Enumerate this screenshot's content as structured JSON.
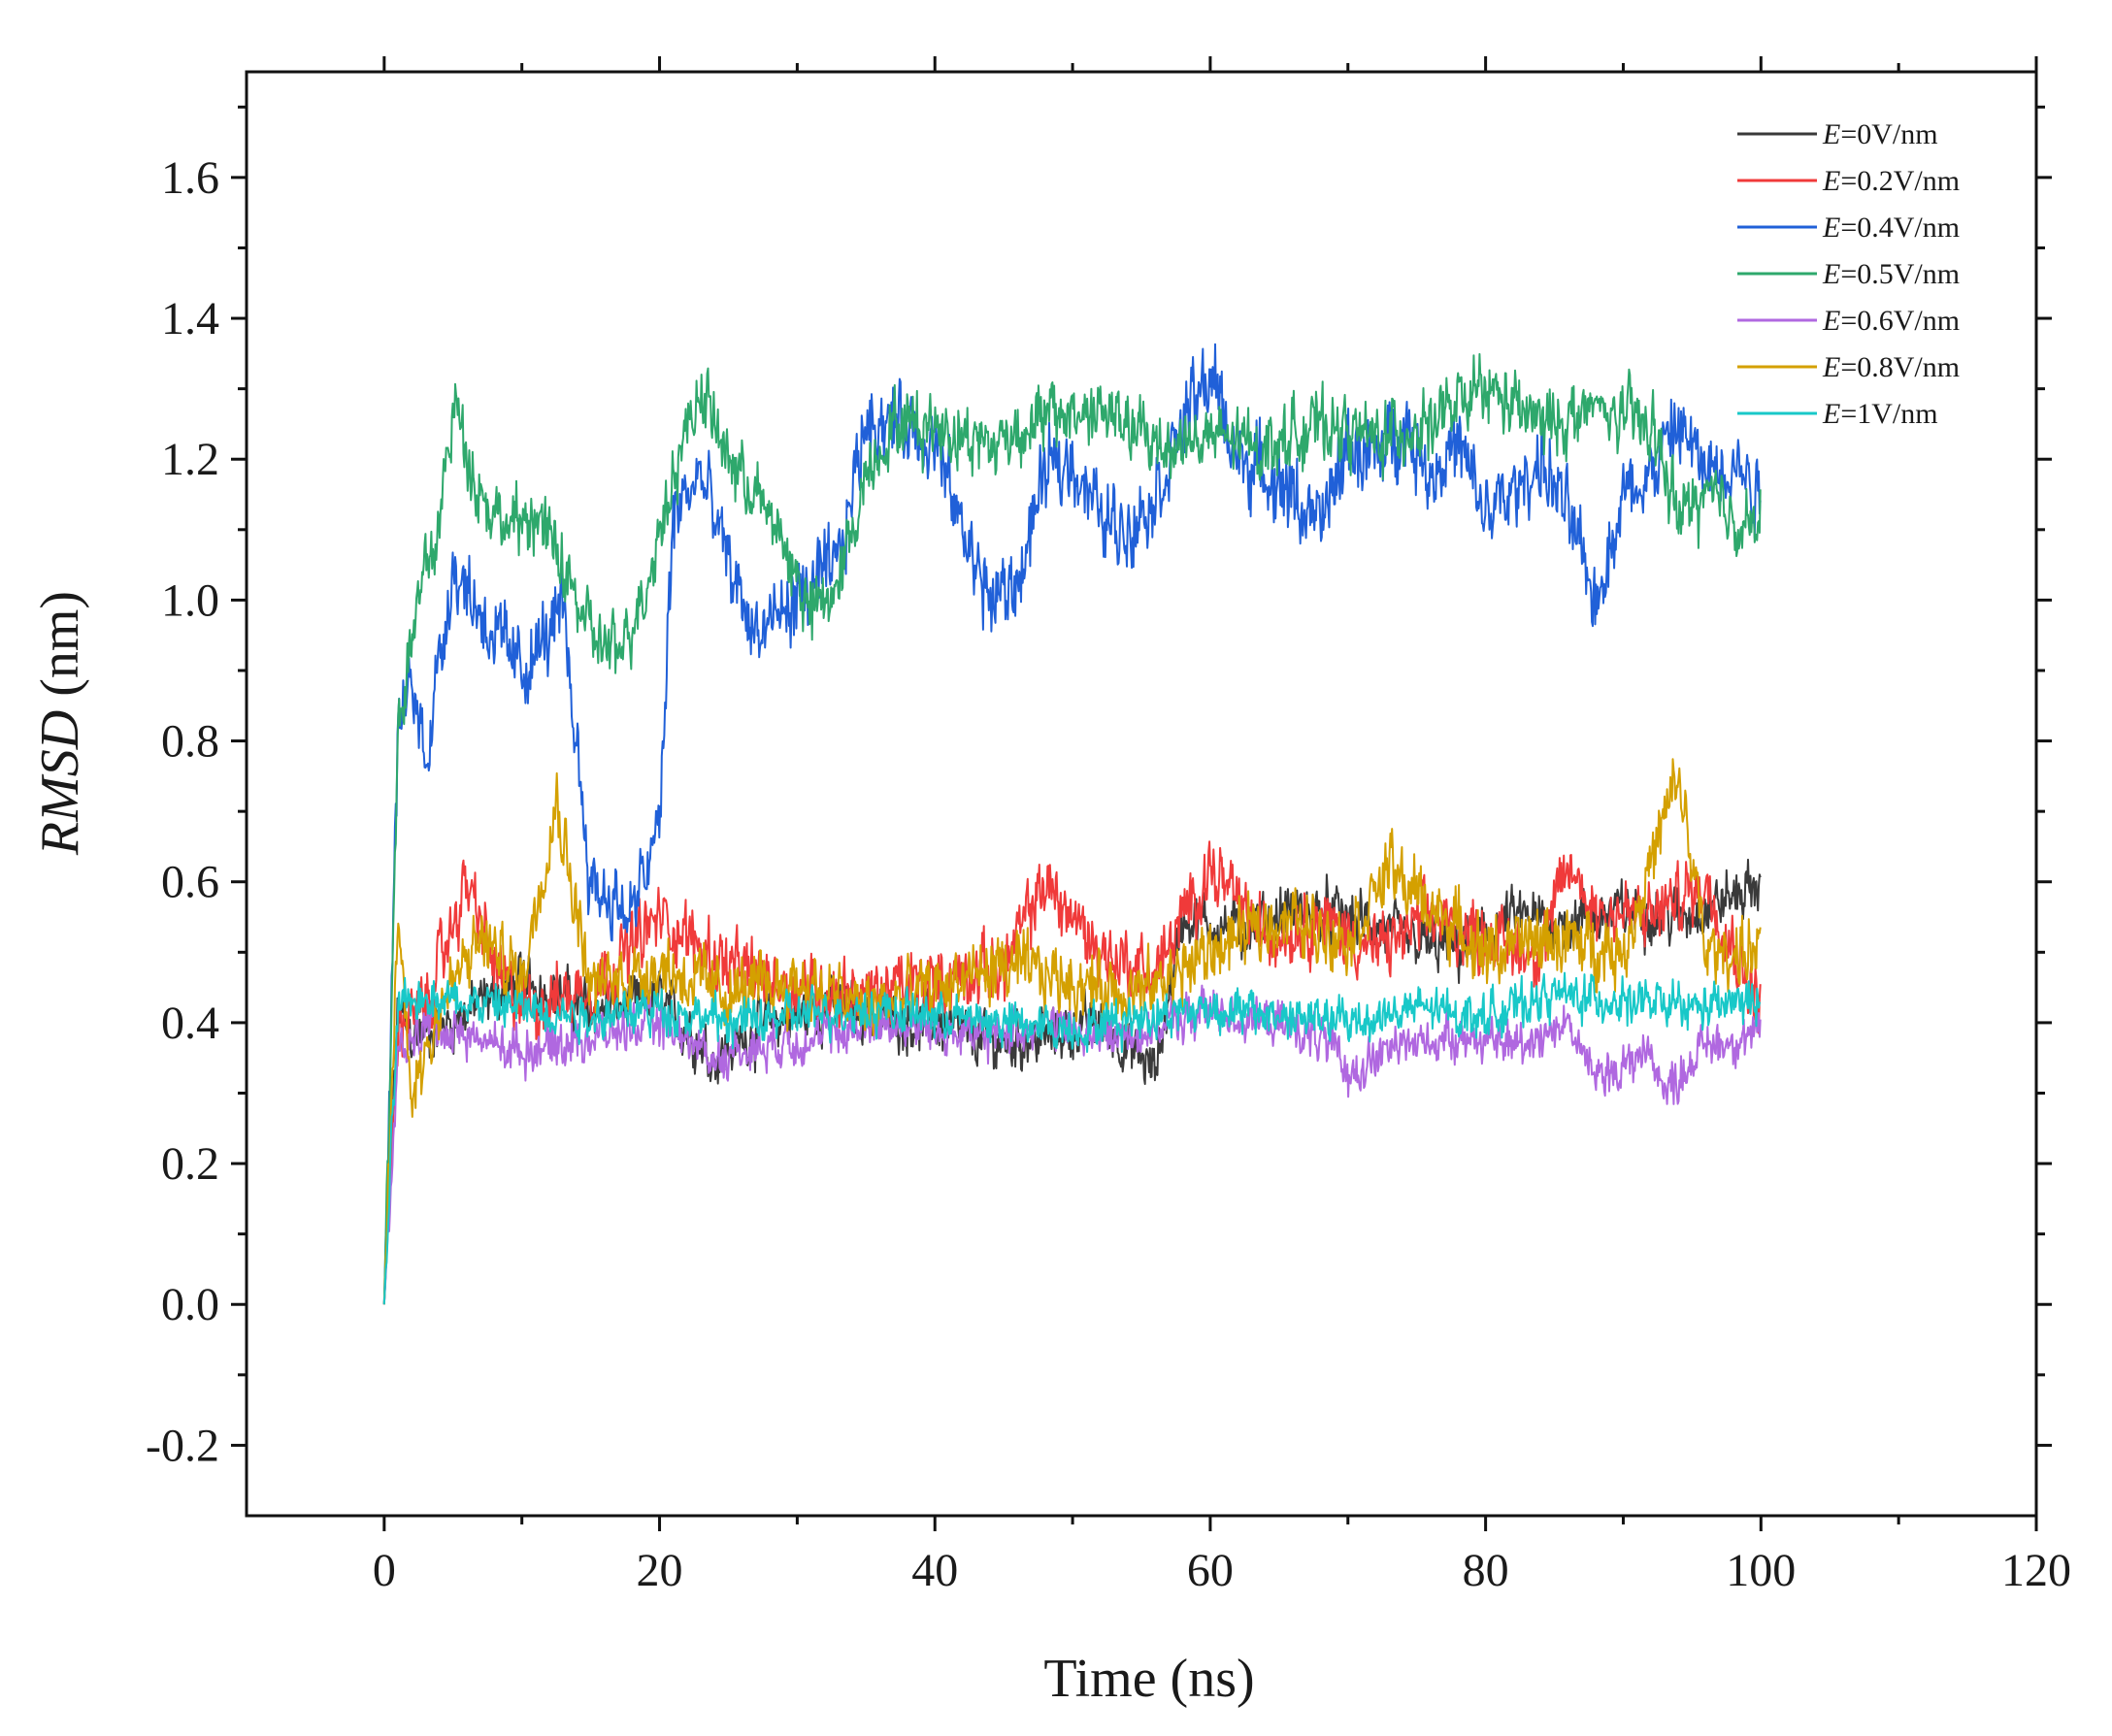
{
  "chart_data": {
    "type": "line",
    "title": "",
    "xlabel": "Time (ns)",
    "ylabel_italic": "RMSD",
    "ylabel_unit": " (nm)",
    "xlim": [
      -10,
      120
    ],
    "ylim": [
      -0.3,
      1.75
    ],
    "x_ticks": [
      0,
      20,
      40,
      60,
      80,
      100,
      120
    ],
    "y_ticks": [
      -0.2,
      0.0,
      0.2,
      0.4,
      0.6,
      0.8,
      1.0,
      1.2,
      1.4,
      1.6
    ],
    "x_tick_labels": [
      "0",
      "20",
      "40",
      "60",
      "80",
      "100",
      "120"
    ],
    "y_tick_labels": [
      "-0.2",
      "0.0",
      "0.2",
      "0.4",
      "0.6",
      "0.8",
      "1.0",
      "1.2",
      "1.4",
      "1.6"
    ],
    "grid": false,
    "legend_position": "top-right",
    "series": [
      {
        "name": "E=0V/nm",
        "var": "E",
        "rest": "=0V/nm",
        "color": "#3a3a3a",
        "x": [
          0,
          1,
          2,
          5,
          8,
          10,
          15,
          20,
          24,
          28,
          32,
          36,
          40,
          44,
          48,
          52,
          56,
          58,
          62,
          66,
          70,
          74,
          78,
          82,
          86,
          90,
          94,
          98,
          100
        ],
        "y": [
          0.0,
          0.42,
          0.38,
          0.4,
          0.44,
          0.46,
          0.42,
          0.43,
          0.35,
          0.4,
          0.42,
          0.41,
          0.4,
          0.37,
          0.38,
          0.4,
          0.33,
          0.55,
          0.53,
          0.56,
          0.55,
          0.52,
          0.5,
          0.55,
          0.54,
          0.56,
          0.55,
          0.58,
          0.6
        ]
      },
      {
        "name": "E=0.2V/nm",
        "var": "E",
        "rest": "=0.2V/nm",
        "color": "#f03a3a",
        "x": [
          0,
          1,
          3,
          6,
          8,
          10,
          15,
          20,
          25,
          30,
          35,
          40,
          45,
          48,
          52,
          56,
          60,
          64,
          68,
          72,
          76,
          80,
          84,
          86,
          88,
          92,
          96,
          100
        ],
        "y": [
          0.0,
          0.4,
          0.42,
          0.6,
          0.48,
          0.42,
          0.45,
          0.55,
          0.48,
          0.45,
          0.44,
          0.46,
          0.48,
          0.6,
          0.5,
          0.47,
          0.62,
          0.52,
          0.55,
          0.5,
          0.55,
          0.52,
          0.5,
          0.62,
          0.56,
          0.55,
          0.6,
          0.42
        ]
      },
      {
        "name": "E=0.4V/nm",
        "var": "E",
        "rest": "=0.4V/nm",
        "color": "#2060d8",
        "x": [
          0,
          1,
          2,
          3,
          5,
          8,
          10,
          13,
          15,
          18,
          20,
          21,
          23,
          25,
          27,
          30,
          33,
          35,
          38,
          40,
          42,
          44,
          46,
          48,
          50,
          52,
          54,
          56,
          58,
          60,
          62,
          64,
          66,
          68,
          70,
          72,
          74,
          76,
          78,
          80,
          82,
          84,
          86,
          88,
          90,
          92,
          94,
          96,
          98,
          100
        ],
        "y": [
          0.0,
          0.82,
          0.88,
          0.78,
          1.05,
          0.95,
          0.9,
          0.98,
          0.6,
          0.55,
          0.68,
          1.12,
          1.18,
          1.05,
          0.95,
          1.0,
          1.05,
          1.26,
          1.25,
          1.22,
          1.1,
          1.0,
          1.02,
          1.18,
          1.2,
          1.12,
          1.1,
          1.15,
          1.25,
          1.32,
          1.2,
          1.18,
          1.15,
          1.1,
          1.22,
          1.2,
          1.25,
          1.18,
          1.22,
          1.12,
          1.15,
          1.2,
          1.12,
          1.0,
          1.15,
          1.18,
          1.25,
          1.18,
          1.2,
          1.15
        ]
      },
      {
        "name": "E=0.5V/nm",
        "var": "E",
        "rest": "=0.5V/nm",
        "color": "#2ea86c",
        "x": [
          0,
          1,
          2,
          3,
          4,
          5,
          7,
          9,
          11,
          13,
          15,
          17,
          19,
          21,
          23,
          25,
          27,
          29,
          31,
          33,
          35,
          37,
          40,
          44,
          48,
          52,
          56,
          60,
          64,
          68,
          72,
          76,
          80,
          84,
          88,
          92,
          94,
          96,
          98,
          100
        ],
        "y": [
          0.0,
          0.82,
          0.95,
          1.05,
          1.1,
          1.28,
          1.15,
          1.1,
          1.12,
          1.05,
          0.95,
          0.92,
          1.02,
          1.18,
          1.3,
          1.2,
          1.15,
          1.08,
          0.98,
          1.02,
          1.18,
          1.25,
          1.25,
          1.22,
          1.26,
          1.27,
          1.22,
          1.23,
          1.22,
          1.25,
          1.23,
          1.25,
          1.3,
          1.25,
          1.27,
          1.25,
          1.12,
          1.15,
          1.12,
          1.1
        ]
      },
      {
        "name": "E=0.6V/nm",
        "var": "E",
        "rest": "=0.6V/nm",
        "color": "#b068e0",
        "x": [
          0,
          1,
          3,
          6,
          10,
          15,
          20,
          24,
          28,
          32,
          36,
          40,
          44,
          48,
          52,
          56,
          60,
          64,
          68,
          70,
          74,
          78,
          82,
          86,
          88,
          92,
          93,
          96,
          100
        ],
        "y": [
          0.0,
          0.35,
          0.4,
          0.38,
          0.36,
          0.38,
          0.4,
          0.35,
          0.37,
          0.38,
          0.4,
          0.39,
          0.38,
          0.4,
          0.38,
          0.39,
          0.42,
          0.4,
          0.38,
          0.33,
          0.37,
          0.38,
          0.37,
          0.4,
          0.32,
          0.36,
          0.3,
          0.37,
          0.38
        ]
      },
      {
        "name": "E=0.8V/nm",
        "var": "E",
        "rest": "=0.8V/nm",
        "color": "#d4a000",
        "x": [
          0,
          1,
          2,
          4,
          7,
          10,
          12.5,
          15,
          20,
          25,
          30,
          35,
          40,
          45,
          50,
          55,
          60,
          65,
          70,
          73,
          75,
          80,
          85,
          90,
          94,
          96,
          100
        ],
        "y": [
          0.0,
          0.55,
          0.3,
          0.42,
          0.52,
          0.46,
          0.72,
          0.45,
          0.48,
          0.44,
          0.46,
          0.42,
          0.45,
          0.48,
          0.46,
          0.44,
          0.5,
          0.55,
          0.52,
          0.62,
          0.58,
          0.5,
          0.52,
          0.5,
          0.75,
          0.5,
          0.5
        ]
      },
      {
        "name": "E=1V/nm",
        "var": "E",
        "rest": "=1V/nm",
        "color": "#18c8c8",
        "x": [
          0,
          1,
          3,
          6,
          10,
          15,
          20,
          25,
          30,
          35,
          40,
          45,
          50,
          55,
          60,
          65,
          70,
          75,
          80,
          85,
          90,
          95,
          100
        ],
        "y": [
          0.0,
          0.42,
          0.44,
          0.43,
          0.42,
          0.41,
          0.42,
          0.4,
          0.41,
          0.42,
          0.41,
          0.4,
          0.39,
          0.41,
          0.42,
          0.41,
          0.4,
          0.42,
          0.41,
          0.44,
          0.43,
          0.42,
          0.43
        ]
      }
    ]
  }
}
